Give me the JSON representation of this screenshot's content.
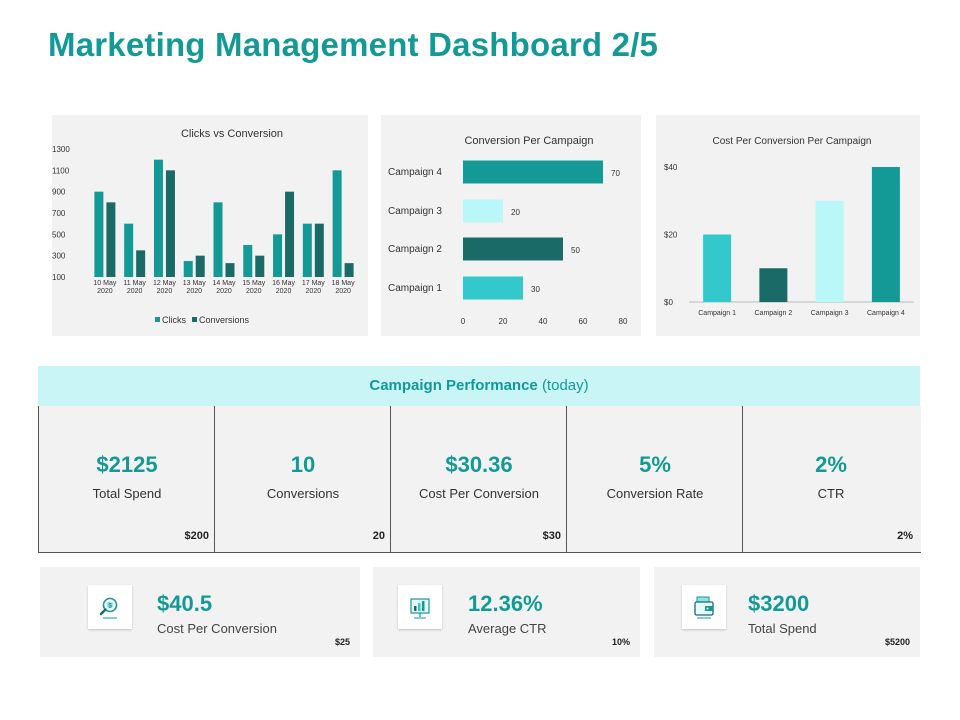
{
  "page": {
    "title": "Marketing Management Dashboard 2/5"
  },
  "colors": {
    "teal": "#139a96",
    "light_teal": "#33c9cc",
    "dark_teal": "#1a6b68",
    "pale_cyan": "#b9f7f9",
    "header_bg": "#c9f5f7"
  },
  "chart_data": [
    {
      "type": "bar",
      "title": "Clicks vs Conversion",
      "categories": [
        "10 May 2020",
        "11 May 2020",
        "12 May 2020",
        "13 May 2020",
        "14 May 2020",
        "15 May 2020",
        "16 May 2020",
        "17 May 2020",
        "18 May 2020"
      ],
      "series": [
        {
          "name": "Clicks",
          "values": [
            900,
            600,
            1200,
            250,
            800,
            400,
            500,
            600,
            1100
          ],
          "color": "#139a96"
        },
        {
          "name": "Conversions",
          "values": [
            800,
            350,
            1100,
            300,
            230,
            300,
            900,
            600,
            230
          ],
          "color": "#1a6b68"
        }
      ],
      "yticks": [
        "1300",
        "1100",
        "900",
        "700",
        "500",
        "300",
        "100"
      ],
      "ylim": [
        100,
        1300
      ],
      "legend": "bottom"
    },
    {
      "type": "bar",
      "orientation": "horizontal",
      "title": "Conversion Per Campaign",
      "categories": [
        "Campaign 4",
        "Campaign 3",
        "Campaign 2",
        "Campaign 1"
      ],
      "values": [
        70,
        20,
        50,
        30
      ],
      "data_labels": [
        "70",
        "20",
        "50",
        "30"
      ],
      "colors": [
        "#139a96",
        "#b9f7f9",
        "#1a6b68",
        "#33c9cc"
      ],
      "xticks": [
        "0",
        "20",
        "40",
        "60",
        "80"
      ],
      "xlim": [
        0,
        80
      ]
    },
    {
      "type": "bar",
      "title": "Cost Per Conversion Per Campaign",
      "categories": [
        "Campaign 1",
        "Campaign 2",
        "Campaign 3",
        "Campaign 4"
      ],
      "values": [
        20,
        10,
        30,
        40
      ],
      "colors": [
        "#33c9cc",
        "#1a6b68",
        "#b9f7f9",
        "#139a96"
      ],
      "yticks": [
        "$40",
        "$20",
        "$0"
      ],
      "ylim": [
        0,
        40
      ]
    }
  ],
  "performance": {
    "title": "Campaign Performance",
    "subtitle": "(today)",
    "cells": [
      {
        "value": "$2125",
        "label": "Total Spend",
        "target": "$200"
      },
      {
        "value": "10",
        "label": "Conversions",
        "target": "20"
      },
      {
        "value": "$30.36",
        "label": "Cost Per Conversion",
        "target": "$30"
      },
      {
        "value": "5%",
        "label": "Conversion Rate",
        "target": ""
      },
      {
        "value": "2%",
        "label": "CTR",
        "target": "2%"
      }
    ]
  },
  "kpis": [
    {
      "value": "$40.5",
      "label": "Cost Per Conversion",
      "target": "$25",
      "icon": "magnifier-dollar-icon"
    },
    {
      "value": "12.36%",
      "label": "Average CTR",
      "target": "10%",
      "icon": "analytics-board-icon"
    },
    {
      "value": "$3200",
      "label": "Total Spend",
      "target": "$5200",
      "icon": "wallet-icon"
    }
  ]
}
